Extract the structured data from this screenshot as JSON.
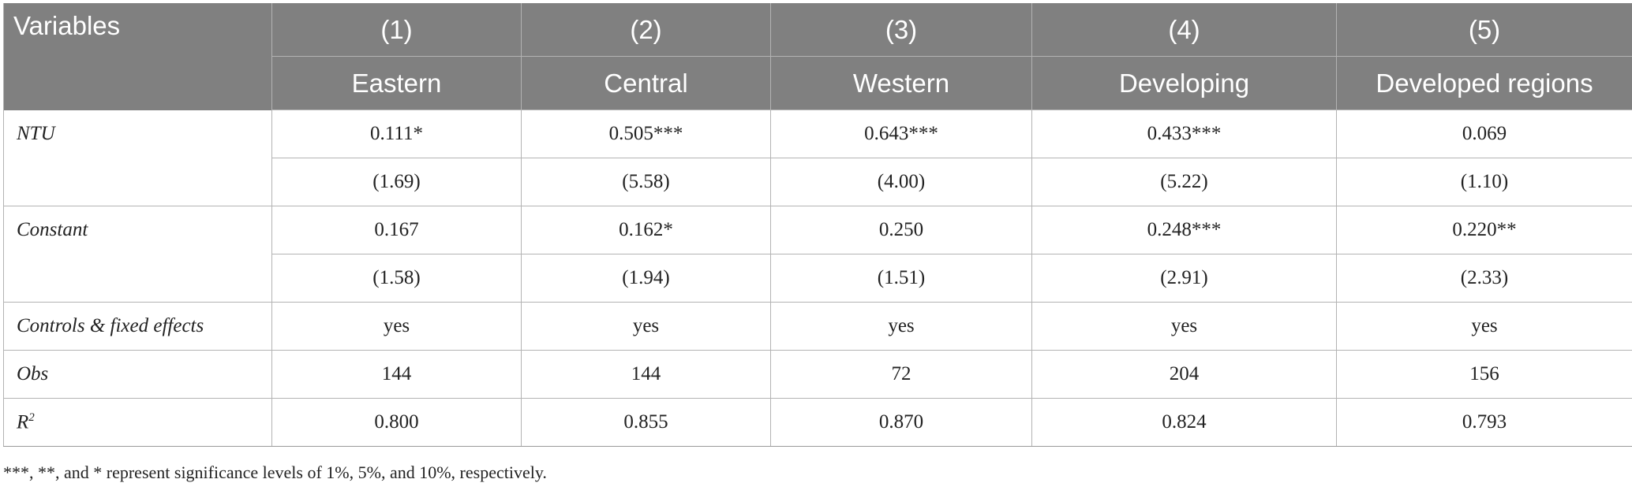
{
  "table": {
    "header": {
      "variables_label": "Variables",
      "columns": [
        {
          "number": "(1)",
          "label": "Eastern"
        },
        {
          "number": "(2)",
          "label": "Central"
        },
        {
          "number": "(3)",
          "label": "Western"
        },
        {
          "number": "(4)",
          "label": "Developing"
        },
        {
          "number": "(5)",
          "label": "Developed regions"
        }
      ]
    },
    "rows": {
      "ntu": {
        "label": "NTU",
        "coef": [
          "0.111*",
          "0.505***",
          "0.643***",
          "0.433***",
          "0.069"
        ],
        "tstat": [
          "(1.69)",
          "(5.58)",
          "(4.00)",
          "(5.22)",
          "(1.10)"
        ]
      },
      "constant": {
        "label": "Constant",
        "coef": [
          "0.167",
          "0.162*",
          "0.250",
          "0.248***",
          "0.220**"
        ],
        "tstat": [
          "(1.58)",
          "(1.94)",
          "(1.51)",
          "(2.91)",
          "(2.33)"
        ]
      },
      "controls": {
        "label": "Controls & fixed effects",
        "values": [
          "yes",
          "yes",
          "yes",
          "yes",
          "yes"
        ]
      },
      "obs": {
        "label": "Obs",
        "values": [
          "144",
          "144",
          "72",
          "204",
          "156"
        ]
      },
      "r2": {
        "label": "R",
        "label_sup": "2",
        "values": [
          "0.800",
          "0.855",
          "0.870",
          "0.824",
          "0.793"
        ]
      }
    }
  },
  "footnote": "***, **, and * represent significance levels of 1%, 5%, and 10%, respectively.",
  "colors": {
    "header_bg": "#808080",
    "header_text": "#ffffff",
    "grid": "#b3b3b3"
  }
}
